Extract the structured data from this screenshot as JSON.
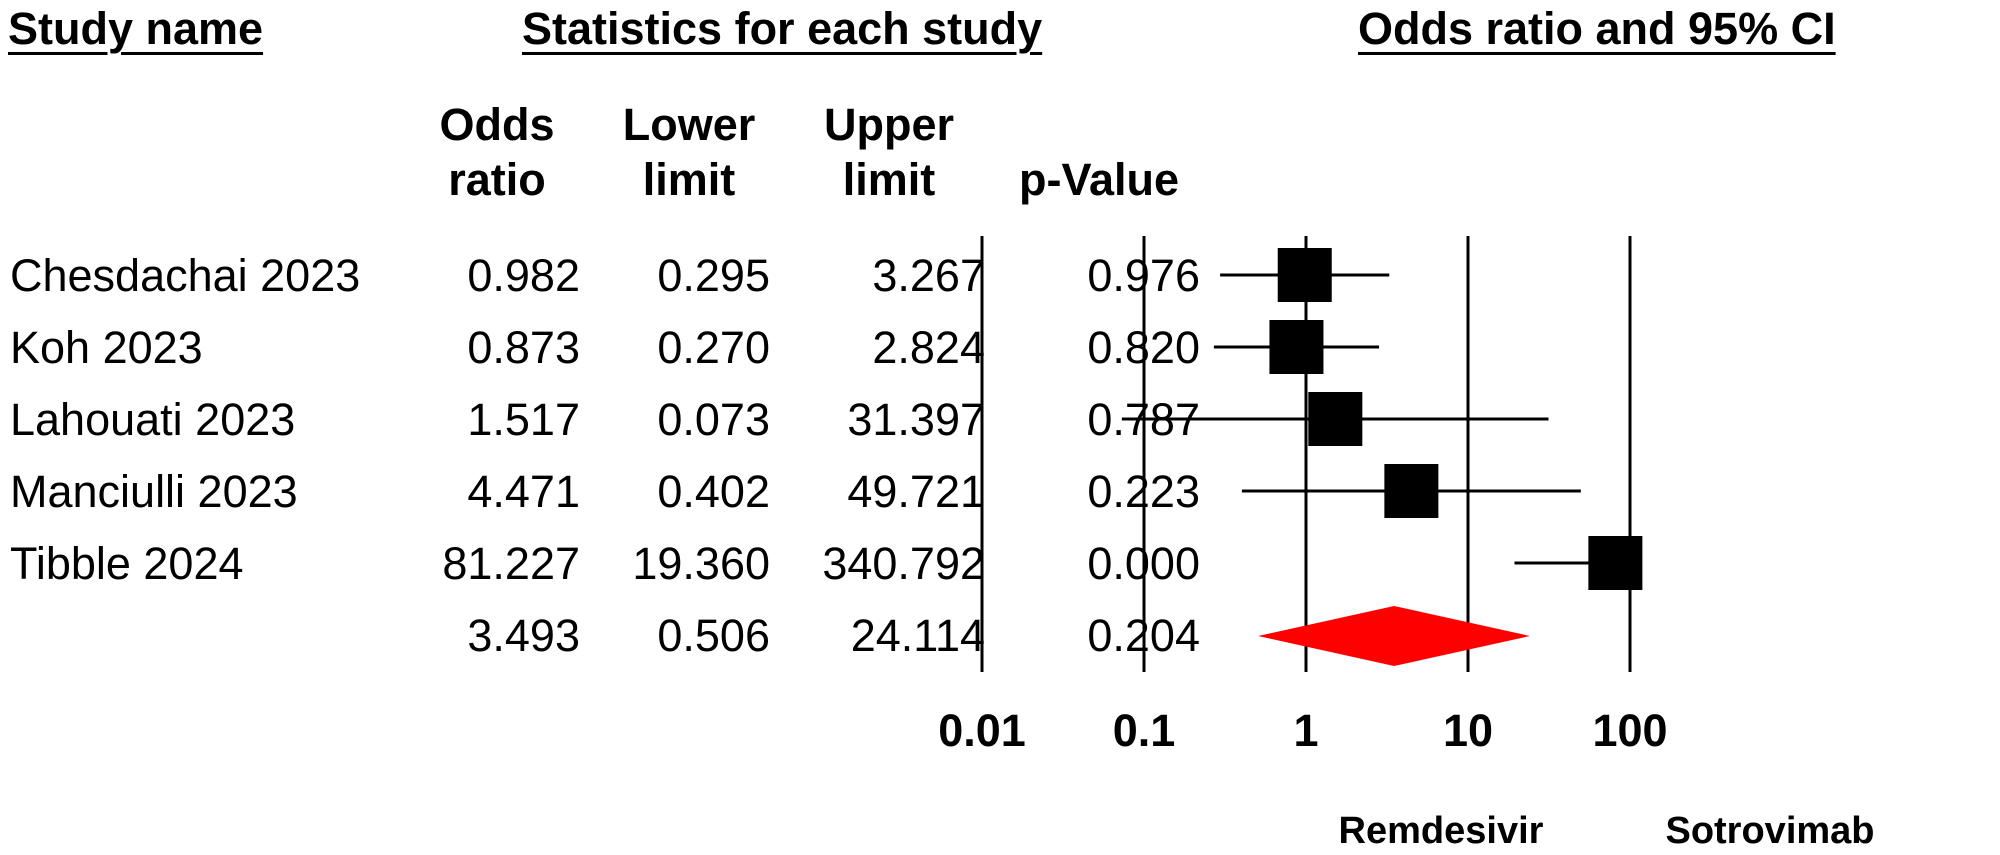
{
  "headers": {
    "study_name": "Study name",
    "statistics": "Statistics for each study",
    "plot_title": "Odds ratio and 95% CI"
  },
  "columns": [
    "Odds\nratio",
    "Lower\nlimit",
    "Upper\nlimit",
    "p-Value"
  ],
  "rows": [
    {
      "name": "Chesdachai 2023",
      "or": "0.982",
      "lower": "0.295",
      "upper": "3.267",
      "p": "0.976"
    },
    {
      "name": "Koh 2023",
      "or": "0.873",
      "lower": "0.270",
      "upper": "2.824",
      "p": "0.820"
    },
    {
      "name": "Lahouati 2023",
      "or": "1.517",
      "lower": "0.073",
      "upper": "31.397",
      "p": "0.787"
    },
    {
      "name": "Manciulli 2023",
      "or": "4.471",
      "lower": "0.402",
      "upper": "49.721",
      "p": "0.223"
    },
    {
      "name": "Tibble 2024",
      "or": "81.227",
      "lower": "19.360",
      "upper": "340.792",
      "p": "0.000"
    },
    {
      "name": "",
      "or": "3.493",
      "lower": "0.506",
      "upper": "24.114",
      "p": "0.204"
    }
  ],
  "favours": {
    "left": "Remdesivir",
    "right": "Sotrovimab"
  },
  "colors": {
    "marker": "#000000",
    "summary": "#ff0000"
  },
  "chart_data": {
    "type": "forest",
    "title": "Odds ratio and 95% CI",
    "x_scale": "log",
    "xlim": [
      0.01,
      100
    ],
    "x_ticks": [
      "0.01",
      "0.1",
      "1",
      "10",
      "100"
    ],
    "x_tick_values": [
      0.01,
      0.1,
      1,
      10,
      100
    ],
    "studies": [
      {
        "name": "Chesdachai 2023",
        "or": 0.982,
        "lower": 0.295,
        "upper": 3.267
      },
      {
        "name": "Koh 2023",
        "or": 0.873,
        "lower": 0.27,
        "upper": 2.824
      },
      {
        "name": "Lahouati 2023",
        "or": 1.517,
        "lower": 0.073,
        "upper": 31.397
      },
      {
        "name": "Manciulli 2023",
        "or": 4.471,
        "lower": 0.402,
        "upper": 49.721
      },
      {
        "name": "Tibble 2024",
        "or": 81.227,
        "lower": 19.36,
        "upper": 340.792
      }
    ],
    "summary": {
      "or": 3.493,
      "lower": 0.506,
      "upper": 24.114
    },
    "favours_left": "Remdesivir",
    "favours_right": "Sotrovimab"
  }
}
